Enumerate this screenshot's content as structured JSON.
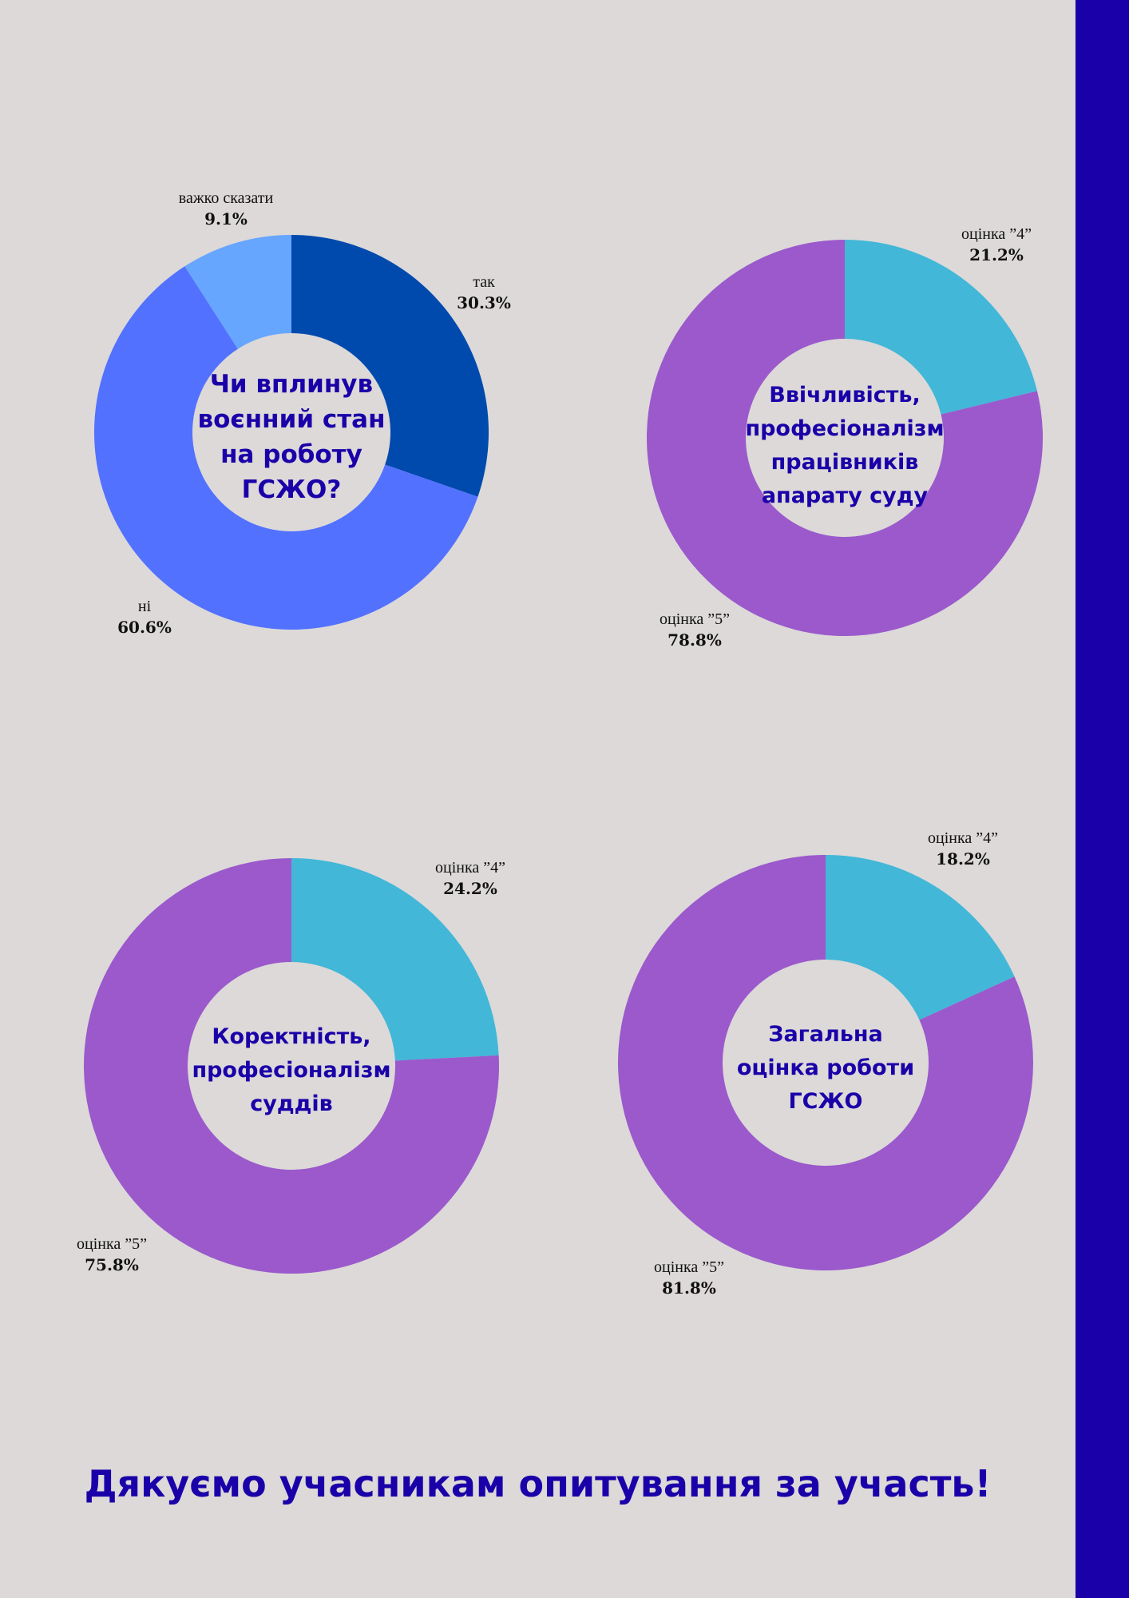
{
  "colors": {
    "accent": "#1a00a8",
    "background": "#dcd9d8"
  },
  "chart_data": [
    {
      "type": "pie",
      "title": [
        "Чи вплинув",
        "воєнний стан",
        "на роботу",
        "ГСЖО?"
      ],
      "labels": [
        "так",
        "ні",
        "важко  сказати"
      ],
      "values": [
        30.3,
        60.6,
        9.1
      ],
      "value_labels": [
        "30.3%",
        "60.6%",
        "9.1%"
      ],
      "colors": [
        "#004aad",
        "#5271ff",
        "#66a6ff"
      ]
    },
    {
      "type": "pie",
      "title": [
        "Ввічливість,",
        "професіоналізм",
        "працівників",
        "апарату суду"
      ],
      "labels": [
        "оцінка ”4”",
        "оцінка ”5”"
      ],
      "values": [
        21.2,
        78.8
      ],
      "value_labels": [
        "21.2%",
        "78.8%"
      ],
      "colors": [
        "#42b7d7",
        "#9b59cc"
      ]
    },
    {
      "type": "pie",
      "title": [
        "Коректність,",
        "професіоналізм",
        "суддів"
      ],
      "labels": [
        "оцінка ”4”",
        "оцінка ”5”"
      ],
      "values": [
        24.2,
        75.8
      ],
      "value_labels": [
        "24.2%",
        "75.8%"
      ],
      "colors": [
        "#42b7d7",
        "#9b59cc"
      ]
    },
    {
      "type": "pie",
      "title": [
        "Загальна",
        "оцінка  роботи",
        "ГСЖО"
      ],
      "labels": [
        "оцінка ”4”",
        "оцінка ”5”"
      ],
      "values": [
        18.2,
        81.8
      ],
      "value_labels": [
        "18.2%",
        "81.8%"
      ],
      "colors": [
        "#42b7d7",
        "#9b59cc"
      ]
    }
  ],
  "footer": {
    "thanks": "Дякуємо учасникам опитування за участь!"
  }
}
